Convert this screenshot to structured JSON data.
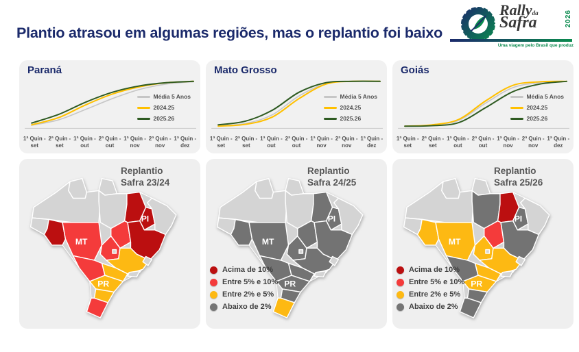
{
  "header": {
    "title": "Plantio atrasou em algumas regiões, mas o replantio foi baixo"
  },
  "logo": {
    "name_top": "Rally",
    "name_da": "da",
    "name_bottom": "Safra",
    "year": "2026",
    "tagline": "Uma viagem pelo Brasil que produz"
  },
  "chart_data": [
    {
      "type": "line",
      "title": "Paraná",
      "x": [
        "1ª Quin - set",
        "2ª Quin - set",
        "1ª Quin - out",
        "2ª Quin - out",
        "1ª Quin - nov",
        "2ª Quin - nov",
        "1ª Quin - dez"
      ],
      "ylim": [
        0,
        100
      ],
      "xlabel": "",
      "ylabel": "",
      "grid": false,
      "legend_position": "middle-right",
      "series": [
        {
          "name": "Média 5 Anos",
          "color": "#c6c6c6",
          "values": [
            3,
            15,
            38,
            62,
            82,
            94,
            99
          ]
        },
        {
          "name": "2024.25",
          "color": "#ffc000",
          "values": [
            4,
            20,
            48,
            72,
            88,
            97,
            100
          ]
        },
        {
          "name": "2025.26",
          "color": "#2f5b22",
          "values": [
            8,
            27,
            54,
            76,
            90,
            97,
            100
          ]
        }
      ]
    },
    {
      "type": "line",
      "title": "Mato Grosso",
      "x": [
        "1ª Quin - set",
        "2ª Quin - set",
        "1ª Quin - out",
        "2ª Quin - out",
        "1ª Quin - nov",
        "2ª Quin - nov",
        "1ª Quin - dez"
      ],
      "ylim": [
        0,
        100
      ],
      "xlabel": "",
      "ylabel": "",
      "grid": false,
      "legend_position": "middle-right",
      "series": [
        {
          "name": "Média 5 Anos",
          "color": "#c6c6c6",
          "values": [
            2,
            7,
            26,
            68,
            95,
            100,
            100
          ]
        },
        {
          "name": "2024.25",
          "color": "#ffc000",
          "values": [
            1,
            5,
            21,
            62,
            94,
            100,
            100
          ]
        },
        {
          "name": "2025.26",
          "color": "#2f5b22",
          "values": [
            4,
            12,
            36,
            76,
            97,
            100,
            100
          ]
        }
      ]
    },
    {
      "type": "line",
      "title": "Goiás",
      "x": [
        "1ª Quin - set",
        "2ª Quin - set",
        "1ª Quin - out",
        "2ª Quin - out",
        "1ª Quin - nov",
        "2ª Quin - nov",
        "1ª Quin - dez"
      ],
      "ylim": [
        0,
        100
      ],
      "xlabel": "",
      "ylabel": "",
      "grid": false,
      "legend_position": "middle-right",
      "series": [
        {
          "name": "Média 5 Anos",
          "color": "#c6c6c6",
          "values": [
            1,
            3,
            14,
            52,
            86,
            97,
            100
          ]
        },
        {
          "name": "2024.25",
          "color": "#ffc000",
          "values": [
            1,
            4,
            16,
            57,
            91,
            99,
            100
          ]
        },
        {
          "name": "2025.26",
          "color": "#2f5b22",
          "values": [
            1,
            2,
            9,
            42,
            77,
            94,
            100
          ]
        }
      ]
    }
  ],
  "maps": [
    {
      "title_line1": "Replantio",
      "title_line2": "Safra 23/24",
      "labels": [
        "PI",
        "MT",
        "PR"
      ],
      "states": {
        "RR": "none",
        "AP": "none",
        "AM": "none",
        "AC": "none",
        "PA": "none",
        "RO": "acima10",
        "MT": "entre5_10",
        "TO": "entre5_10",
        "MA": "acima10",
        "PI": "acima10",
        "NE": "none",
        "BA": "acima10",
        "GO": "entre5_10",
        "DF": "none",
        "MG": "entre2_5",
        "ES": "none",
        "RJ": "none",
        "SP": "entre2_5",
        "MS": "entre5_10",
        "PR": "entre2_5",
        "SC": "entre2_5",
        "RS": "entre5_10"
      }
    },
    {
      "title_line1": "Replantio",
      "title_line2": "Safra 24/25",
      "labels": [
        "PI",
        "MT",
        "PR"
      ],
      "states": {
        "RR": "none",
        "AP": "none",
        "AM": "none",
        "AC": "none",
        "PA": "none",
        "RO": "abaixo2",
        "MT": "abaixo2",
        "TO": "abaixo2",
        "MA": "abaixo2",
        "PI": "abaixo2",
        "NE": "none",
        "BA": "abaixo2",
        "GO": "abaixo2",
        "DF": "none",
        "MG": "abaixo2",
        "ES": "none",
        "RJ": "none",
        "SP": "abaixo2",
        "MS": "abaixo2",
        "PR": "abaixo2",
        "SC": "abaixo2",
        "RS": "entre2_5"
      }
    },
    {
      "title_line1": "Replantio",
      "title_line2": "Safra 25/26",
      "labels": [
        "PI",
        "MT",
        "PR"
      ],
      "states": {
        "RR": "none",
        "AP": "none",
        "AM": "none",
        "AC": "none",
        "PA": "abaixo2",
        "RO": "entre2_5",
        "MT": "entre2_5",
        "TO": "entre5_10",
        "MA": "acima10",
        "PI": "abaixo2",
        "NE": "none",
        "BA": "abaixo2",
        "GO": "entre2_5",
        "DF": "none",
        "MG": "entre2_5",
        "ES": "none",
        "RJ": "none",
        "SP": "entre2_5",
        "MS": "abaixo2",
        "PR": "entre2_5",
        "SC": "abaixo2",
        "RS": "abaixo2"
      }
    }
  ],
  "map_legend": {
    "items": [
      {
        "key": "acima10",
        "label": "Acima de 10%",
        "color": "#bb0f10"
      },
      {
        "key": "entre5_10",
        "label": "Entre 5% e 10%",
        "color": "#f43b3b"
      },
      {
        "key": "entre2_5",
        "label": "Entre 2% e 5%",
        "color": "#fdb913"
      },
      {
        "key": "abaixo2",
        "label": "Abaixo de 2%",
        "color": "#757575"
      }
    ]
  },
  "category_colors": {
    "none": "#d4d4d4",
    "abaixo2": "#737373",
    "entre2_5": "#fdb913",
    "entre5_10": "#f43b3b",
    "acima10": "#bb0f10"
  },
  "colors": {
    "title": "#1b2a6b",
    "panel_bg": "#f1f1f1",
    "logo_gradient_start": "#1b2a6b",
    "logo_gradient_end": "#0a8a4e"
  }
}
